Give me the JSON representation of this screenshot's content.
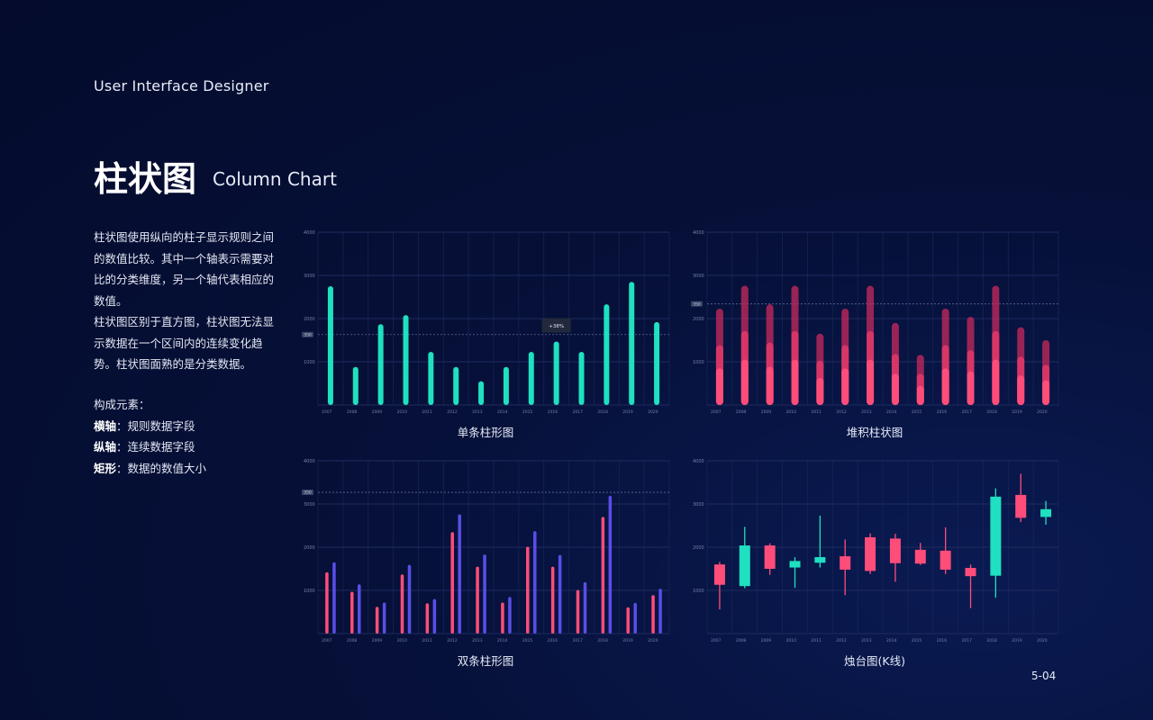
{
  "header": {
    "brand": "User Interface Designer",
    "title": "柱状图",
    "subtitle": "Column Chart"
  },
  "description": {
    "paragraphs": [
      "柱状图使用纵向的柱子显示规则之间的数值比较。其中一个轴表示需要对比的分类维度，另一个轴代表相应的数值。",
      "柱状图区别于直方图，柱状图无法显示数据在一个区间内的连续变化趋势。柱状图面熟的是分类数据。"
    ],
    "elements_title": "构成元素：",
    "elements": [
      {
        "term": "横轴",
        "text": "：规则数据字段"
      },
      {
        "term": "纵轴",
        "text": "：连续数据字段"
      },
      {
        "term": "矩形",
        "text": "：数据的数值大小"
      }
    ]
  },
  "page_number": "5-04",
  "colors": {
    "teal": "#1fe0c0",
    "pink": "#ff4d7a",
    "purple": "#5a4ee8",
    "grid": "#1e2b5e"
  },
  "chart_data": [
    {
      "type": "bar",
      "title": "单条柱形图",
      "categories": [
        "2007",
        "2008",
        "2009",
        "2010",
        "2011",
        "2012",
        "2013",
        "2014",
        "2015",
        "2016",
        "2017",
        "2018",
        "2019",
        "2020"
      ],
      "series": [
        {
          "values": [
            2750,
            880,
            1870,
            2080,
            1230,
            880,
            550,
            880,
            1230,
            1470,
            1230,
            2330,
            2850,
            1920
          ]
        }
      ],
      "yticks": [
        1000,
        2000,
        3000,
        4000
      ],
      "ylim": [
        0,
        4000
      ],
      "reference": {
        "value": 1630,
        "label": "350"
      },
      "tooltip": {
        "category": "2016",
        "text": "+38%"
      }
    },
    {
      "type": "bar",
      "stacked": true,
      "title": "堆积柱状图",
      "categories": [
        "2007",
        "2008",
        "2009",
        "2010",
        "2011",
        "2012",
        "2013",
        "2014",
        "2015",
        "2016",
        "2017",
        "2018",
        "2019",
        "2020"
      ],
      "series": [
        {
          "values": [
            2230,
            2760,
            2330,
            2760,
            1650,
            2230,
            2760,
            1900,
            1160,
            2230,
            2040,
            2760,
            1800,
            1500
          ]
        }
      ],
      "yticks": [
        1000,
        2000,
        3000,
        4000
      ],
      "ylim": [
        0,
        4000
      ],
      "reference": {
        "value": 2340,
        "label": "350"
      }
    },
    {
      "type": "bar",
      "title": "双条柱形图",
      "categories": [
        "2007",
        "2008",
        "2009",
        "2010",
        "2011",
        "2012",
        "2013",
        "2014",
        "2015",
        "2016",
        "2017",
        "2018",
        "2019",
        "2020"
      ],
      "series": [
        {
          "values": [
            1420,
            970,
            620,
            1370,
            700,
            2350,
            1550,
            720,
            2010,
            1550,
            1010,
            2700,
            610,
            890
          ]
        },
        {
          "values": [
            1650,
            1140,
            720,
            1590,
            800,
            2760,
            1830,
            850,
            2370,
            1820,
            1190,
            3190,
            710,
            1040
          ]
        }
      ],
      "yticks": [
        1000,
        2000,
        3000,
        4000
      ],
      "ylim": [
        0,
        4000
      ],
      "reference": {
        "value": 3270,
        "label": "350"
      }
    },
    {
      "type": "candlestick",
      "title": "烛台图(K线)",
      "categories": [
        "2007",
        "2008",
        "2009",
        "2010",
        "2011",
        "2012",
        "2013",
        "2014",
        "2015",
        "2016",
        "2017",
        "2018",
        "2019",
        "2020"
      ],
      "ohlc": [
        [
          1600,
          1660,
          560,
          1130
        ],
        [
          1100,
          2470,
          1050,
          2040
        ],
        [
          2040,
          2090,
          1360,
          1500
        ],
        [
          1530,
          1770,
          1060,
          1680
        ],
        [
          1640,
          2730,
          1530,
          1770
        ],
        [
          1790,
          2180,
          890,
          1480
        ],
        [
          2230,
          2320,
          1380,
          1450
        ],
        [
          2200,
          2310,
          1200,
          1630
        ],
        [
          1940,
          2100,
          1590,
          1620
        ],
        [
          1920,
          2460,
          1380,
          1480
        ],
        [
          1520,
          1600,
          590,
          1330
        ],
        [
          1340,
          3360,
          830,
          3170
        ],
        [
          3210,
          3700,
          2580,
          2680
        ],
        [
          2700,
          3070,
          2520,
          2880
        ]
      ],
      "yticks": [
        1000,
        2000,
        3000,
        4000
      ],
      "ylim": [
        0,
        4000
      ]
    }
  ]
}
